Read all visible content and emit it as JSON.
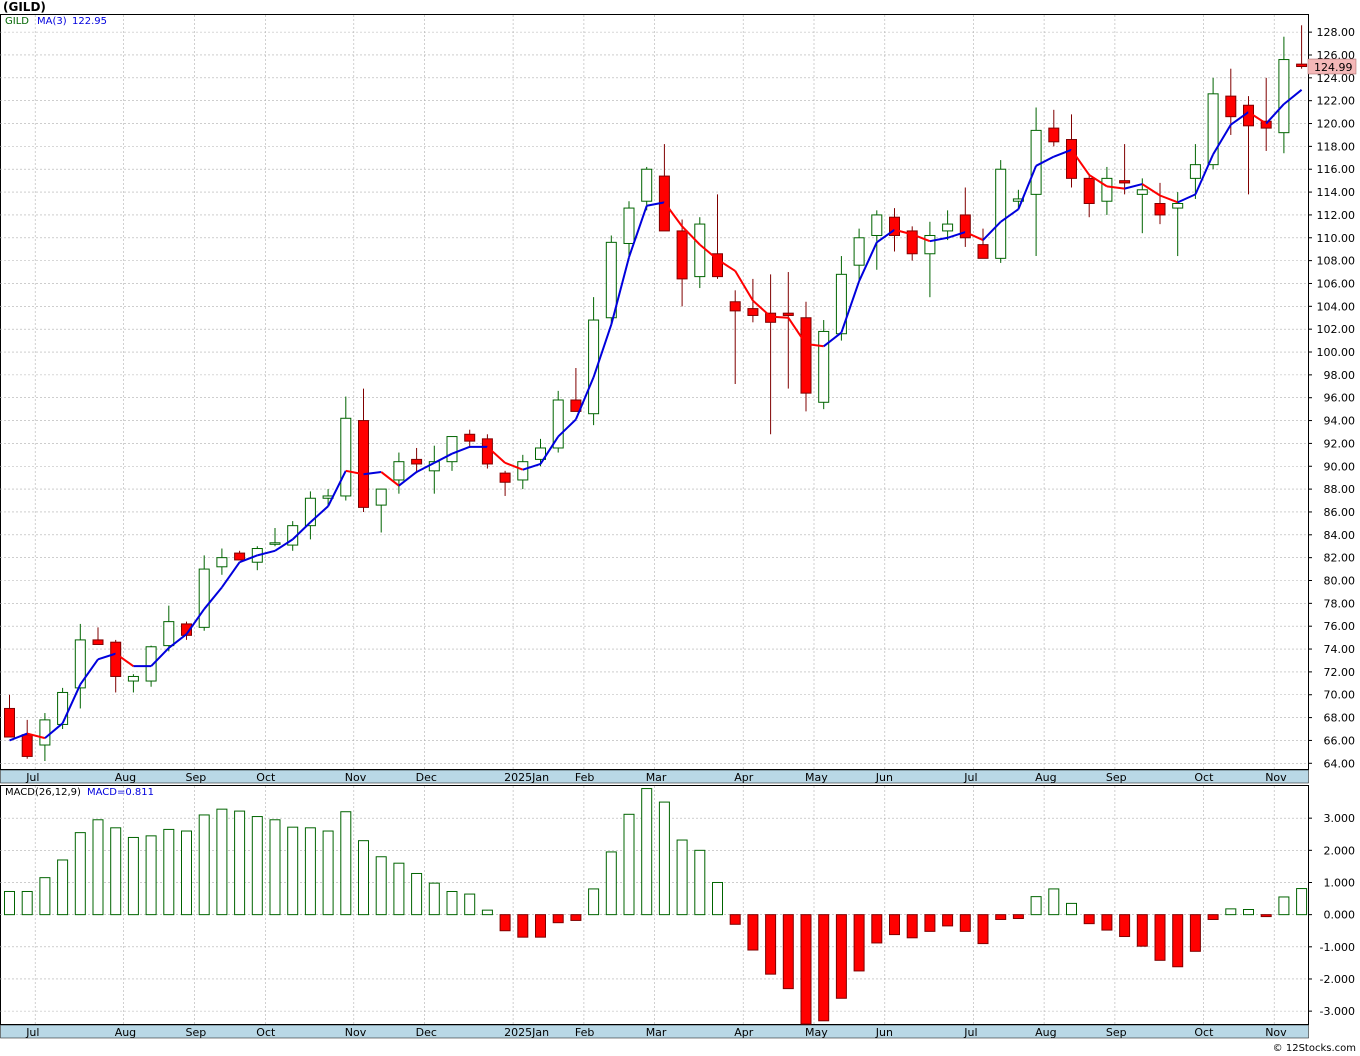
{
  "title": "(GILD)",
  "credit": "© 12Stocks.com",
  "colors": {
    "up_body": "#ffffff",
    "up_edge": "#006400",
    "down_body": "#ff0000",
    "down_edge": "#800000",
    "ma_up": "#0000dd",
    "ma_down": "#ff0000",
    "hist_pos_edge": "#006400",
    "hist_neg": "#ff0000",
    "axis_strip": "#b9d8e6",
    "grid": "#b0b0b0",
    "last_price_bg": "#f4b8b8"
  },
  "price_panel": {
    "legend_symbol": "GILD",
    "legend_ma": "MA(3)",
    "legend_ma_value": "122.95",
    "last_price_label": "124.99",
    "ylim": [
      63.5,
      129.5
    ],
    "y_ticks": [
      "64.00",
      "66.00",
      "68.00",
      "70.00",
      "72.00",
      "74.00",
      "76.00",
      "78.00",
      "80.00",
      "82.00",
      "84.00",
      "86.00",
      "88.00",
      "90.00",
      "92.00",
      "94.00",
      "96.00",
      "98.00",
      "100.00",
      "102.00",
      "104.00",
      "106.00",
      "108.00",
      "110.00",
      "112.00",
      "114.00",
      "116.00",
      "118.00",
      "120.00",
      "122.00",
      "124.00",
      "126.00",
      "128.00"
    ]
  },
  "macd_panel": {
    "legend_name": "MACD(26,12,9)",
    "legend_value": "MACD=0.811",
    "ylim": [
      -3.4,
      4.0
    ],
    "y_ticks": [
      "3.000",
      "2.000",
      "1.000",
      "0.000",
      "-1.000",
      "-2.000",
      "-3.000"
    ]
  },
  "month_labels": [
    "Jul",
    "Aug",
    "Sep",
    "Oct",
    "Nov",
    "Dec",
    "2025Jan",
    "Feb",
    "Mar",
    "Apr",
    "May",
    "Jun",
    "Jul",
    "Aug",
    "Sep",
    "Oct",
    "Nov"
  ],
  "chart_data": [
    {
      "type": "candlestick",
      "title": "(GILD)",
      "interval": "weekly",
      "month_week_index": [
        1,
        6,
        10,
        14,
        19,
        23,
        28,
        32,
        36,
        41,
        45,
        49,
        54,
        58,
        62,
        67,
        71
      ],
      "ohlc": [
        [
          68.8,
          70.0,
          66.3,
          66.3
        ],
        [
          66.5,
          67.8,
          64.4,
          64.6
        ],
        [
          65.6,
          68.4,
          64.2,
          67.8
        ],
        [
          67.4,
          70.6,
          67.0,
          70.2
        ],
        [
          70.6,
          76.2,
          68.8,
          74.8
        ],
        [
          74.8,
          75.9,
          74.4,
          74.4
        ],
        [
          74.6,
          74.8,
          70.2,
          71.6
        ],
        [
          71.2,
          71.8,
          70.2,
          71.6
        ],
        [
          71.2,
          74.3,
          70.7,
          74.2
        ],
        [
          74.3,
          77.8,
          73.8,
          76.4
        ],
        [
          76.2,
          76.4,
          74.8,
          75.2
        ],
        [
          75.9,
          82.2,
          75.6,
          81.0
        ],
        [
          81.2,
          82.8,
          80.5,
          82.0
        ],
        [
          82.4,
          82.6,
          81.8,
          81.8
        ],
        [
          81.6,
          83.0,
          80.9,
          82.8
        ],
        [
          83.3,
          84.6,
          83.0,
          83.3
        ],
        [
          83.1,
          85.2,
          82.6,
          84.8
        ],
        [
          84.8,
          87.8,
          83.6,
          87.2
        ],
        [
          87.2,
          88.0,
          86.5,
          87.4
        ],
        [
          87.4,
          96.1,
          87.0,
          94.2
        ],
        [
          94.0,
          96.8,
          86.0,
          86.4
        ],
        [
          86.6,
          88.0,
          84.2,
          88.0
        ],
        [
          88.8,
          91.2,
          87.6,
          90.4
        ],
        [
          90.6,
          91.6,
          89.4,
          90.2
        ],
        [
          89.6,
          91.8,
          87.6,
          90.4
        ],
        [
          90.4,
          92.4,
          89.6,
          92.6
        ],
        [
          92.8,
          93.2,
          91.6,
          92.2
        ],
        [
          92.4,
          92.8,
          89.8,
          90.2
        ],
        [
          89.4,
          89.6,
          87.4,
          88.6
        ],
        [
          88.8,
          91.0,
          88.0,
          90.4
        ],
        [
          90.6,
          92.4,
          90.0,
          91.6
        ],
        [
          91.6,
          96.6,
          91.2,
          95.8
        ],
        [
          95.8,
          98.6,
          94.8,
          94.8
        ],
        [
          94.6,
          104.8,
          93.6,
          102.8
        ],
        [
          103.0,
          110.2,
          102.4,
          109.6
        ],
        [
          109.5,
          113.2,
          108.4,
          112.6
        ],
        [
          113.2,
          116.2,
          112.4,
          116.0
        ],
        [
          115.4,
          118.2,
          110.6,
          110.6
        ],
        [
          110.6,
          111.6,
          104.0,
          106.4
        ],
        [
          106.6,
          111.8,
          105.6,
          111.2
        ],
        [
          108.6,
          113.8,
          106.4,
          106.6
        ],
        [
          104.4,
          105.4,
          97.2,
          103.6
        ],
        [
          103.8,
          106.4,
          102.6,
          103.2
        ],
        [
          103.4,
          106.8,
          92.8,
          102.6
        ],
        [
          103.4,
          107.0,
          96.8,
          103.2
        ],
        [
          103.0,
          104.4,
          94.8,
          96.4
        ],
        [
          95.6,
          102.8,
          95.0,
          101.8
        ],
        [
          101.6,
          108.4,
          101.0,
          106.8
        ],
        [
          107.6,
          110.8,
          106.2,
          110.0
        ],
        [
          110.2,
          112.4,
          107.2,
          112.0
        ],
        [
          111.8,
          112.6,
          108.8,
          110.2
        ],
        [
          110.6,
          111.0,
          108.0,
          108.6
        ],
        [
          108.6,
          111.4,
          104.8,
          110.2
        ],
        [
          110.6,
          112.4,
          109.8,
          111.2
        ],
        [
          112.0,
          114.4,
          109.2,
          110.0
        ],
        [
          109.4,
          110.8,
          108.2,
          108.2
        ],
        [
          108.2,
          116.8,
          107.8,
          116.0
        ],
        [
          113.2,
          114.2,
          112.6,
          113.4
        ],
        [
          113.8,
          121.4,
          108.4,
          119.4
        ],
        [
          119.6,
          121.2,
          118.0,
          118.4
        ],
        [
          118.6,
          120.8,
          114.4,
          115.2
        ],
        [
          115.2,
          115.6,
          111.8,
          113.0
        ],
        [
          113.2,
          116.2,
          112.0,
          115.2
        ],
        [
          115.0,
          118.2,
          113.8,
          114.8
        ],
        [
          113.8,
          115.2,
          110.4,
          114.2
        ],
        [
          113.0,
          114.8,
          111.2,
          112.0
        ],
        [
          112.6,
          114.0,
          108.4,
          113.0
        ],
        [
          115.2,
          118.2,
          113.4,
          116.4
        ],
        [
          116.4,
          124.0,
          116.0,
          122.6
        ],
        [
          122.4,
          124.8,
          119.0,
          120.6
        ],
        [
          121.6,
          122.4,
          113.8,
          119.8
        ],
        [
          120.2,
          124.0,
          117.6,
          119.6
        ],
        [
          119.2,
          127.6,
          117.4,
          125.6
        ],
        [
          125.2,
          128.6,
          124.8,
          124.99
        ]
      ],
      "ma3": [
        66.0,
        66.6,
        66.2,
        67.5,
        70.9,
        73.1,
        73.6,
        72.5,
        72.5,
        74.1,
        75.3,
        77.5,
        79.4,
        81.6,
        82.2,
        82.6,
        83.6,
        85.1,
        86.5,
        89.6,
        89.3,
        89.5,
        88.3,
        89.5,
        90.3,
        91.1,
        91.7,
        91.7,
        90.3,
        89.7,
        90.2,
        92.6,
        94.1,
        97.8,
        102.4,
        108.3,
        112.8,
        113.1,
        111.0,
        109.4,
        108.1,
        107.1,
        104.5,
        103.1,
        103.0,
        100.7,
        100.5,
        101.7,
        106.2,
        109.6,
        110.7,
        110.3,
        109.7,
        110.0,
        110.5,
        109.8,
        111.4,
        112.5,
        116.3,
        117.1,
        117.7,
        115.5,
        114.5,
        114.3,
        114.7,
        113.7,
        113.1,
        113.8,
        117.3,
        119.9,
        121.0,
        120.0,
        121.7,
        122.95
      ],
      "macd_hist": [
        0.72,
        0.72,
        1.15,
        1.7,
        2.55,
        2.95,
        2.7,
        2.4,
        2.45,
        2.65,
        2.6,
        3.1,
        3.28,
        3.22,
        3.05,
        2.95,
        2.72,
        2.7,
        2.6,
        3.2,
        2.3,
        1.8,
        1.6,
        1.28,
        0.98,
        0.72,
        0.64,
        0.14,
        -0.5,
        -0.7,
        -0.7,
        -0.25,
        -0.18,
        0.8,
        1.95,
        3.12,
        3.92,
        3.5,
        2.32,
        2.0,
        1.0,
        -0.3,
        -1.1,
        -1.85,
        -2.3,
        -3.4,
        -3.3,
        -2.6,
        -1.75,
        -0.88,
        -0.62,
        -0.72,
        -0.52,
        -0.35,
        -0.52,
        -0.9,
        -0.15,
        -0.12,
        0.56,
        0.8,
        0.35,
        -0.28,
        -0.48,
        -0.68,
        -0.98,
        -1.42,
        -1.62,
        -1.14,
        -0.15,
        0.18,
        0.16,
        -0.06,
        0.55,
        0.811
      ]
    }
  ]
}
